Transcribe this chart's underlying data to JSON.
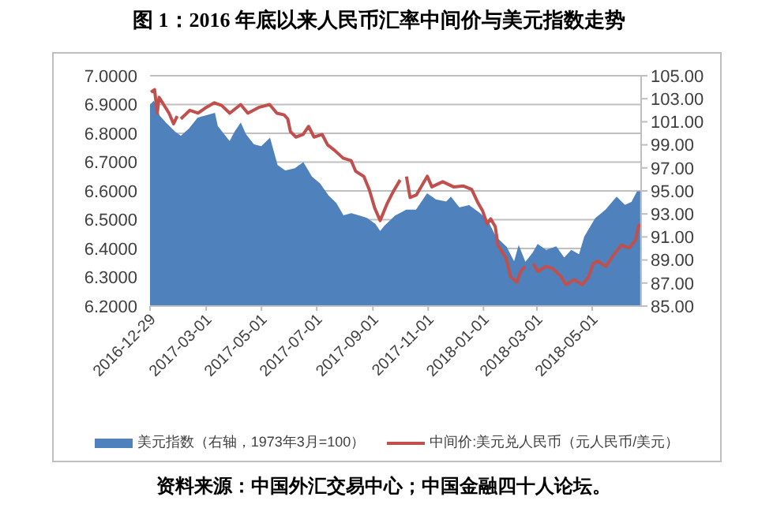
{
  "chart_data": {
    "type": "line",
    "title": "图 1：2016 年底以来人民币汇率中间价与美元指数走势",
    "annotations": [
      "资料来源：中国外汇交易中心；中国金融四十人论坛。"
    ],
    "xlim": [
      "2016-12-29",
      "2018-06-24"
    ],
    "xticks": [
      "2016-12-29",
      "2017-03-01",
      "2017-05-01",
      "2017-07-01",
      "2017-09-01",
      "2017-11-01",
      "2018-01-01",
      "2018-03-01",
      "2018-05-01"
    ],
    "ylim": [
      6.2,
      7.0
    ],
    "yticks": [
      {
        "value": 6.2,
        "label": "6.2000"
      },
      {
        "value": 6.3,
        "label": "6.3000"
      },
      {
        "value": 6.4,
        "label": "6.4000"
      },
      {
        "value": 6.5,
        "label": "6.5000"
      },
      {
        "value": 6.6,
        "label": "6.6000"
      },
      {
        "value": 6.7,
        "label": "6.7000"
      },
      {
        "value": 6.8,
        "label": "6.8000"
      },
      {
        "value": 6.9,
        "label": "6.9000"
      },
      {
        "value": 7.0,
        "label": "7.0000"
      }
    ],
    "y2lim": [
      85,
      105
    ],
    "y2ticks": [
      {
        "value": 85,
        "label": "85.00"
      },
      {
        "value": 87,
        "label": "87.00"
      },
      {
        "value": 89,
        "label": "89.00"
      },
      {
        "value": 91,
        "label": "91.00"
      },
      {
        "value": 93,
        "label": "93.00"
      },
      {
        "value": 95,
        "label": "95.00"
      },
      {
        "value": 97,
        "label": "97.00"
      },
      {
        "value": 99,
        "label": "99.00"
      },
      {
        "value": 101,
        "label": "101.00"
      },
      {
        "value": 103,
        "label": "103.00"
      },
      {
        "value": 105,
        "label": "105.00"
      }
    ],
    "grid": "y",
    "legend": "bottom",
    "marker": "none",
    "line_style": "solid",
    "series": [
      {
        "name": "美元指数（右轴，1973年3月=100）",
        "type": "area",
        "axis": "y2",
        "color": "#4f81bd",
        "x": [
          "2016-12-29",
          "2017-01-02",
          "2017-01-08",
          "2017-01-16",
          "2017-01-25",
          "2017-02-01",
          "2017-02-11",
          "2017-02-20",
          "2017-03-01",
          "2017-03-10",
          "2017-03-13",
          "2017-03-18",
          "2017-03-27",
          "2017-04-02",
          "2017-04-08",
          "2017-04-13",
          "2017-04-22",
          "2017-05-01",
          "2017-05-10",
          "2017-05-18",
          "2017-05-27",
          "2017-06-07",
          "2017-06-16",
          "2017-06-25",
          "2017-07-04",
          "2017-07-13",
          "2017-07-22",
          "2017-07-30",
          "2017-08-08",
          "2017-08-17",
          "2017-08-25",
          "2017-09-03",
          "2017-09-09",
          "2017-09-14",
          "2017-09-26",
          "2017-10-08",
          "2017-10-19",
          "2017-10-31",
          "2017-11-09",
          "2017-11-21",
          "2017-11-26",
          "2017-12-05",
          "2017-12-16",
          "2017-12-28",
          "2018-01-05",
          "2018-01-14",
          "2018-01-26",
          "2018-02-04",
          "2018-02-09",
          "2018-02-16",
          "2018-02-25",
          "2018-03-02",
          "2018-03-11",
          "2018-03-22",
          "2018-03-31",
          "2018-04-08",
          "2018-04-17",
          "2018-04-23",
          "2018-05-05",
          "2018-05-16",
          "2018-05-28",
          "2018-06-06",
          "2018-06-14",
          "2018-06-20",
          "2018-06-23"
        ],
        "values": [
          102.4,
          102.7,
          101.5,
          100.8,
          100.1,
          99.7,
          100.4,
          101.3,
          101.5,
          101.7,
          100.6,
          100.1,
          99.2,
          100.1,
          100.8,
          99.9,
          99.0,
          98.8,
          99.5,
          97.2,
          96.7,
          96.9,
          97.4,
          96.2,
          95.6,
          94.6,
          93.9,
          92.8,
          93.0,
          92.8,
          92.6,
          92.1,
          91.4,
          91.9,
          92.8,
          93.3,
          93.3,
          94.7,
          94.2,
          94.0,
          94.4,
          93.5,
          93.7,
          93.0,
          92.4,
          91.0,
          90.1,
          88.7,
          90.1,
          88.7,
          89.6,
          90.3,
          89.8,
          90.1,
          89.1,
          89.8,
          89.4,
          91.0,
          92.6,
          93.3,
          94.4,
          93.7,
          94.0,
          94.9,
          94.9
        ]
      },
      {
        "name": "中间价:美元兑人民币（元人民币/美元）",
        "axis": "y",
        "color": "#c0504d",
        "x": [
          "2016-12-30",
          "2017-01-03",
          "2017-01-06",
          "2017-01-08",
          "2017-01-13",
          "2017-01-19",
          "2017-01-24",
          "2017-01-28",
          "2017-01-30",
          "2017-02-01",
          "2017-02-11",
          "2017-02-20",
          "2017-03-01",
          "2017-03-10",
          "2017-03-18",
          "2017-03-27",
          "2017-04-08",
          "2017-04-16",
          "2017-04-28",
          "2017-05-10",
          "2017-05-18",
          "2017-05-26",
          "2017-05-30",
          "2017-06-02",
          "2017-06-08",
          "2017-06-16",
          "2017-06-22",
          "2017-06-28",
          "2017-07-07",
          "2017-07-13",
          "2017-07-21",
          "2017-07-30",
          "2017-08-08",
          "2017-08-13",
          "2017-08-22",
          "2017-08-28",
          "2017-09-03",
          "2017-09-09",
          "2017-09-17",
          "2017-09-23",
          "2017-10-01",
          "2017-10-04",
          "2017-10-08",
          "2017-10-12",
          "2017-10-19",
          "2017-10-31",
          "2017-11-05",
          "2017-11-17",
          "2017-11-29",
          "2017-12-10",
          "2017-12-19",
          "2017-12-26",
          "2017-12-31",
          "2018-01-05",
          "2018-01-09",
          "2018-01-14",
          "2018-01-17",
          "2018-01-26",
          "2018-01-31",
          "2018-02-07",
          "2018-02-11",
          "2018-02-16",
          "2018-02-19",
          "2018-02-25",
          "2018-03-02",
          "2018-03-11",
          "2018-03-19",
          "2018-03-28",
          "2018-04-02",
          "2018-04-11",
          "2018-04-20",
          "2018-04-27",
          "2018-05-02",
          "2018-05-07",
          "2018-05-16",
          "2018-05-24",
          "2018-06-02",
          "2018-06-11",
          "2018-06-18",
          "2018-06-21",
          "2018-06-23"
        ],
        "values": [
          6.943,
          6.952,
          6.87,
          6.925,
          6.9,
          6.87,
          6.833,
          6.86,
          null,
          6.85,
          6.88,
          6.87,
          6.89,
          6.906,
          6.897,
          6.87,
          6.9,
          6.87,
          6.89,
          6.9,
          6.87,
          6.864,
          6.85,
          6.806,
          6.787,
          6.796,
          6.824,
          6.787,
          6.796,
          6.76,
          6.74,
          6.714,
          6.705,
          6.668,
          6.65,
          6.604,
          6.54,
          6.497,
          6.558,
          6.595,
          6.638,
          null,
          6.65,
          6.577,
          6.586,
          6.651,
          6.614,
          6.632,
          6.614,
          6.617,
          6.605,
          6.558,
          6.531,
          6.485,
          6.503,
          6.476,
          6.411,
          6.366,
          6.301,
          6.283,
          6.32,
          6.338,
          null,
          6.347,
          6.32,
          6.338,
          6.329,
          6.301,
          6.274,
          6.292,
          6.274,
          6.301,
          6.347,
          6.356,
          6.338,
          6.375,
          6.411,
          6.402,
          6.43,
          6.476,
          6.485
        ]
      }
    ]
  }
}
